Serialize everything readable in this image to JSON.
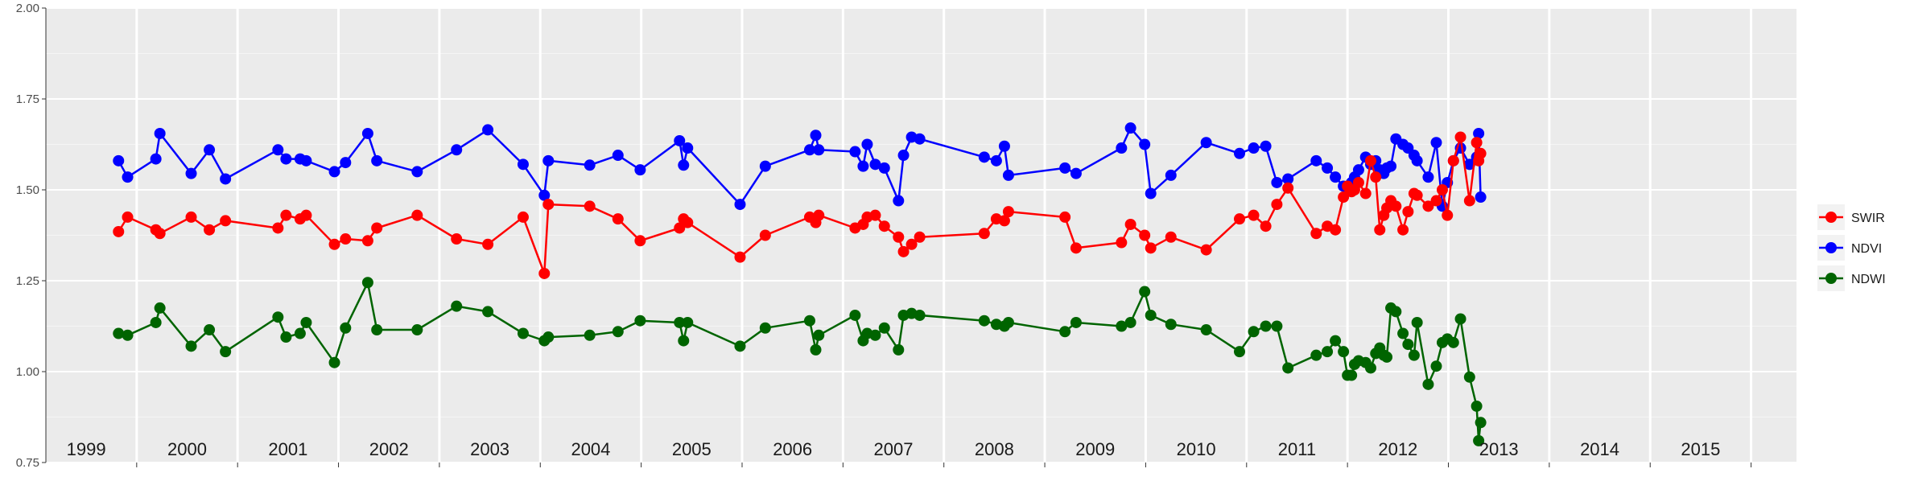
{
  "chart_data": {
    "type": "line",
    "ylim": [
      0.75,
      2.0
    ],
    "xlim": [
      1998.6,
      2015.95
    ],
    "yticks": [
      0.75,
      1.0,
      1.25,
      1.5,
      1.75,
      2.0
    ],
    "ytick_labels": [
      "0.75",
      "1.00",
      "1.25",
      "1.50",
      "1.75",
      "2.00"
    ],
    "year_dividers": [
      1999.5,
      2000.5,
      2001.5,
      2002.5,
      2003.5,
      2004.5,
      2005.5,
      2006.5,
      2007.5,
      2008.5,
      2009.5,
      2010.5,
      2011.5,
      2012.5,
      2013.5,
      2014.5,
      2015.5
    ],
    "year_labels": [
      {
        "label": "1999",
        "x": 1999.0
      },
      {
        "label": "2000",
        "x": 2000.0
      },
      {
        "label": "2001",
        "x": 2001.0
      },
      {
        "label": "2002",
        "x": 2002.0
      },
      {
        "label": "2003",
        "x": 2003.0
      },
      {
        "label": "2004",
        "x": 2004.0
      },
      {
        "label": "2005",
        "x": 2005.0
      },
      {
        "label": "2006",
        "x": 2006.0
      },
      {
        "label": "2007",
        "x": 2007.0
      },
      {
        "label": "2008",
        "x": 2008.0
      },
      {
        "label": "2009",
        "x": 2009.0
      },
      {
        "label": "2010",
        "x": 2010.0
      },
      {
        "label": "2011",
        "x": 2011.0
      },
      {
        "label": "2012",
        "x": 2012.0
      },
      {
        "label": "2013",
        "x": 2013.0
      },
      {
        "label": "2014",
        "x": 2014.0
      },
      {
        "label": "2015",
        "x": 2015.0
      }
    ],
    "grid": true,
    "legend_position": "right",
    "legend_order": [
      "SWIR",
      "NDVI",
      "NDWI"
    ],
    "series": [
      {
        "name": "NDVI",
        "color": "#0000ff",
        "x": [
          1999.32,
          1999.41,
          1999.69,
          1999.73,
          2000.04,
          2000.22,
          2000.38,
          2000.9,
          2000.98,
          2001.12,
          2001.18,
          2001.46,
          2001.57,
          2001.79,
          2001.88,
          2002.28,
          2002.67,
          2002.98,
          2003.33,
          2003.54,
          2003.58,
          2003.99,
          2004.27,
          2004.49,
          2004.88,
          2004.92,
          2004.96,
          2005.48,
          2005.73,
          2006.17,
          2006.23,
          2006.26,
          2006.62,
          2006.7,
          2006.74,
          2006.82,
          2006.91,
          2007.05,
          2007.1,
          2007.18,
          2007.26,
          2007.9,
          2008.02,
          2008.1,
          2008.14,
          2008.7,
          2008.81,
          2009.26,
          2009.35,
          2009.49,
          2009.55,
          2009.75,
          2010.1,
          2010.43,
          2010.57,
          2010.69,
          2010.8,
          2010.91,
          2011.19,
          2011.3,
          2011.38,
          2011.46,
          2011.5,
          2011.54,
          2011.57,
          2011.61,
          2011.68,
          2011.73,
          2011.78,
          2011.82,
          2011.86,
          2011.89,
          2011.93,
          2011.98,
          2012.05,
          2012.1,
          2012.16,
          2012.19,
          2012.3,
          2012.38,
          2012.44,
          2012.49,
          2012.55,
          2012.62,
          2012.71,
          2012.78,
          2012.8,
          2012.82
        ],
        "values": [
          1.58,
          1.535,
          1.585,
          1.655,
          1.545,
          1.61,
          1.53,
          1.61,
          1.585,
          1.585,
          1.58,
          1.55,
          1.575,
          1.655,
          1.58,
          1.55,
          1.61,
          1.665,
          1.57,
          1.485,
          1.58,
          1.568,
          1.595,
          1.555,
          1.635,
          1.568,
          1.615,
          1.46,
          1.565,
          1.61,
          1.65,
          1.61,
          1.605,
          1.565,
          1.625,
          1.57,
          1.56,
          1.47,
          1.595,
          1.645,
          1.64,
          1.59,
          1.58,
          1.62,
          1.54,
          1.56,
          1.545,
          1.615,
          1.67,
          1.625,
          1.49,
          1.54,
          1.63,
          1.6,
          1.615,
          1.62,
          1.52,
          1.53,
          1.58,
          1.56,
          1.535,
          1.51,
          1.51,
          1.52,
          1.535,
          1.555,
          1.59,
          1.57,
          1.58,
          1.555,
          1.545,
          1.56,
          1.565,
          1.64,
          1.625,
          1.615,
          1.595,
          1.58,
          1.535,
          1.63,
          1.455,
          1.52,
          1.58,
          1.615,
          1.57,
          1.59,
          1.655,
          1.48
        ]
      },
      {
        "name": "SWIR",
        "color": "#ff0000",
        "x": [
          1999.32,
          1999.41,
          1999.69,
          1999.73,
          2000.04,
          2000.22,
          2000.38,
          2000.9,
          2000.98,
          2001.12,
          2001.18,
          2001.46,
          2001.57,
          2001.79,
          2001.88,
          2002.28,
          2002.67,
          2002.98,
          2003.33,
          2003.54,
          2003.58,
          2003.99,
          2004.27,
          2004.49,
          2004.88,
          2004.92,
          2004.96,
          2005.48,
          2005.73,
          2006.17,
          2006.23,
          2006.26,
          2006.62,
          2006.7,
          2006.74,
          2006.82,
          2006.91,
          2007.05,
          2007.1,
          2007.18,
          2007.26,
          2007.9,
          2008.02,
          2008.1,
          2008.14,
          2008.7,
          2008.81,
          2009.26,
          2009.35,
          2009.49,
          2009.55,
          2009.75,
          2010.1,
          2010.43,
          2010.57,
          2010.69,
          2010.8,
          2010.91,
          2011.19,
          2011.3,
          2011.38,
          2011.46,
          2011.5,
          2011.54,
          2011.57,
          2011.61,
          2011.68,
          2011.73,
          2011.78,
          2011.82,
          2011.86,
          2011.89,
          2011.93,
          2011.98,
          2012.05,
          2012.1,
          2012.16,
          2012.19,
          2012.3,
          2012.38,
          2012.44,
          2012.49,
          2012.55,
          2012.62,
          2012.71,
          2012.78,
          2012.8,
          2012.82
        ],
        "values": [
          1.385,
          1.425,
          1.39,
          1.38,
          1.425,
          1.39,
          1.415,
          1.395,
          1.43,
          1.42,
          1.43,
          1.35,
          1.365,
          1.36,
          1.395,
          1.43,
          1.365,
          1.35,
          1.425,
          1.27,
          1.46,
          1.455,
          1.42,
          1.36,
          1.395,
          1.42,
          1.41,
          1.315,
          1.375,
          1.425,
          1.41,
          1.43,
          1.395,
          1.405,
          1.425,
          1.43,
          1.4,
          1.37,
          1.33,
          1.35,
          1.37,
          1.38,
          1.42,
          1.415,
          1.44,
          1.425,
          1.34,
          1.355,
          1.405,
          1.375,
          1.34,
          1.37,
          1.335,
          1.42,
          1.43,
          1.4,
          1.46,
          1.505,
          1.38,
          1.4,
          1.39,
          1.48,
          1.51,
          1.495,
          1.5,
          1.52,
          1.49,
          1.58,
          1.535,
          1.39,
          1.43,
          1.45,
          1.47,
          1.455,
          1.39,
          1.44,
          1.49,
          1.485,
          1.455,
          1.47,
          1.5,
          1.43,
          1.58,
          1.645,
          1.47,
          1.63,
          1.58,
          1.6
        ]
      },
      {
        "name": "NDWI",
        "color": "#006400",
        "x": [
          1999.32,
          1999.41,
          1999.69,
          1999.73,
          2000.04,
          2000.22,
          2000.38,
          2000.9,
          2000.98,
          2001.12,
          2001.18,
          2001.46,
          2001.57,
          2001.79,
          2001.88,
          2002.28,
          2002.67,
          2002.98,
          2003.33,
          2003.54,
          2003.58,
          2003.99,
          2004.27,
          2004.49,
          2004.88,
          2004.92,
          2004.96,
          2005.48,
          2005.73,
          2006.17,
          2006.23,
          2006.26,
          2006.62,
          2006.7,
          2006.74,
          2006.82,
          2006.91,
          2007.05,
          2007.1,
          2007.18,
          2007.26,
          2007.9,
          2008.02,
          2008.1,
          2008.14,
          2008.7,
          2008.81,
          2009.26,
          2009.35,
          2009.49,
          2009.55,
          2009.75,
          2010.1,
          2010.43,
          2010.57,
          2010.69,
          2010.8,
          2010.91,
          2011.19,
          2011.3,
          2011.38,
          2011.46,
          2011.5,
          2011.54,
          2011.57,
          2011.61,
          2011.68,
          2011.73,
          2011.78,
          2011.82,
          2011.86,
          2011.89,
          2011.93,
          2011.98,
          2012.05,
          2012.1,
          2012.16,
          2012.19,
          2012.3,
          2012.38,
          2012.44,
          2012.49,
          2012.55,
          2012.62,
          2012.71,
          2012.78,
          2012.8,
          2012.82
        ],
        "values": [
          1.105,
          1.1,
          1.135,
          1.175,
          1.07,
          1.115,
          1.055,
          1.15,
          1.095,
          1.105,
          1.135,
          1.025,
          1.12,
          1.245,
          1.115,
          1.115,
          1.18,
          1.165,
          1.105,
          1.085,
          1.095,
          1.1,
          1.11,
          1.14,
          1.135,
          1.085,
          1.135,
          1.07,
          1.12,
          1.14,
          1.06,
          1.1,
          1.155,
          1.085,
          1.105,
          1.1,
          1.12,
          1.06,
          1.155,
          1.16,
          1.155,
          1.14,
          1.13,
          1.125,
          1.135,
          1.11,
          1.135,
          1.125,
          1.135,
          1.22,
          1.155,
          1.13,
          1.115,
          1.055,
          1.11,
          1.125,
          1.125,
          1.01,
          1.045,
          1.055,
          1.085,
          1.055,
          0.99,
          0.99,
          1.02,
          1.03,
          1.025,
          1.01,
          1.05,
          1.065,
          1.045,
          1.04,
          1.175,
          1.165,
          1.105,
          1.075,
          1.045,
          1.135,
          0.965,
          1.015,
          1.08,
          1.09,
          1.08,
          1.145,
          0.985,
          0.905,
          0.81,
          0.86
        ]
      }
    ]
  },
  "legend": {
    "items": [
      {
        "label": "SWIR",
        "color": "#ff0000"
      },
      {
        "label": "NDVI",
        "color": "#0000ff"
      },
      {
        "label": "NDWI",
        "color": "#006400"
      }
    ]
  }
}
